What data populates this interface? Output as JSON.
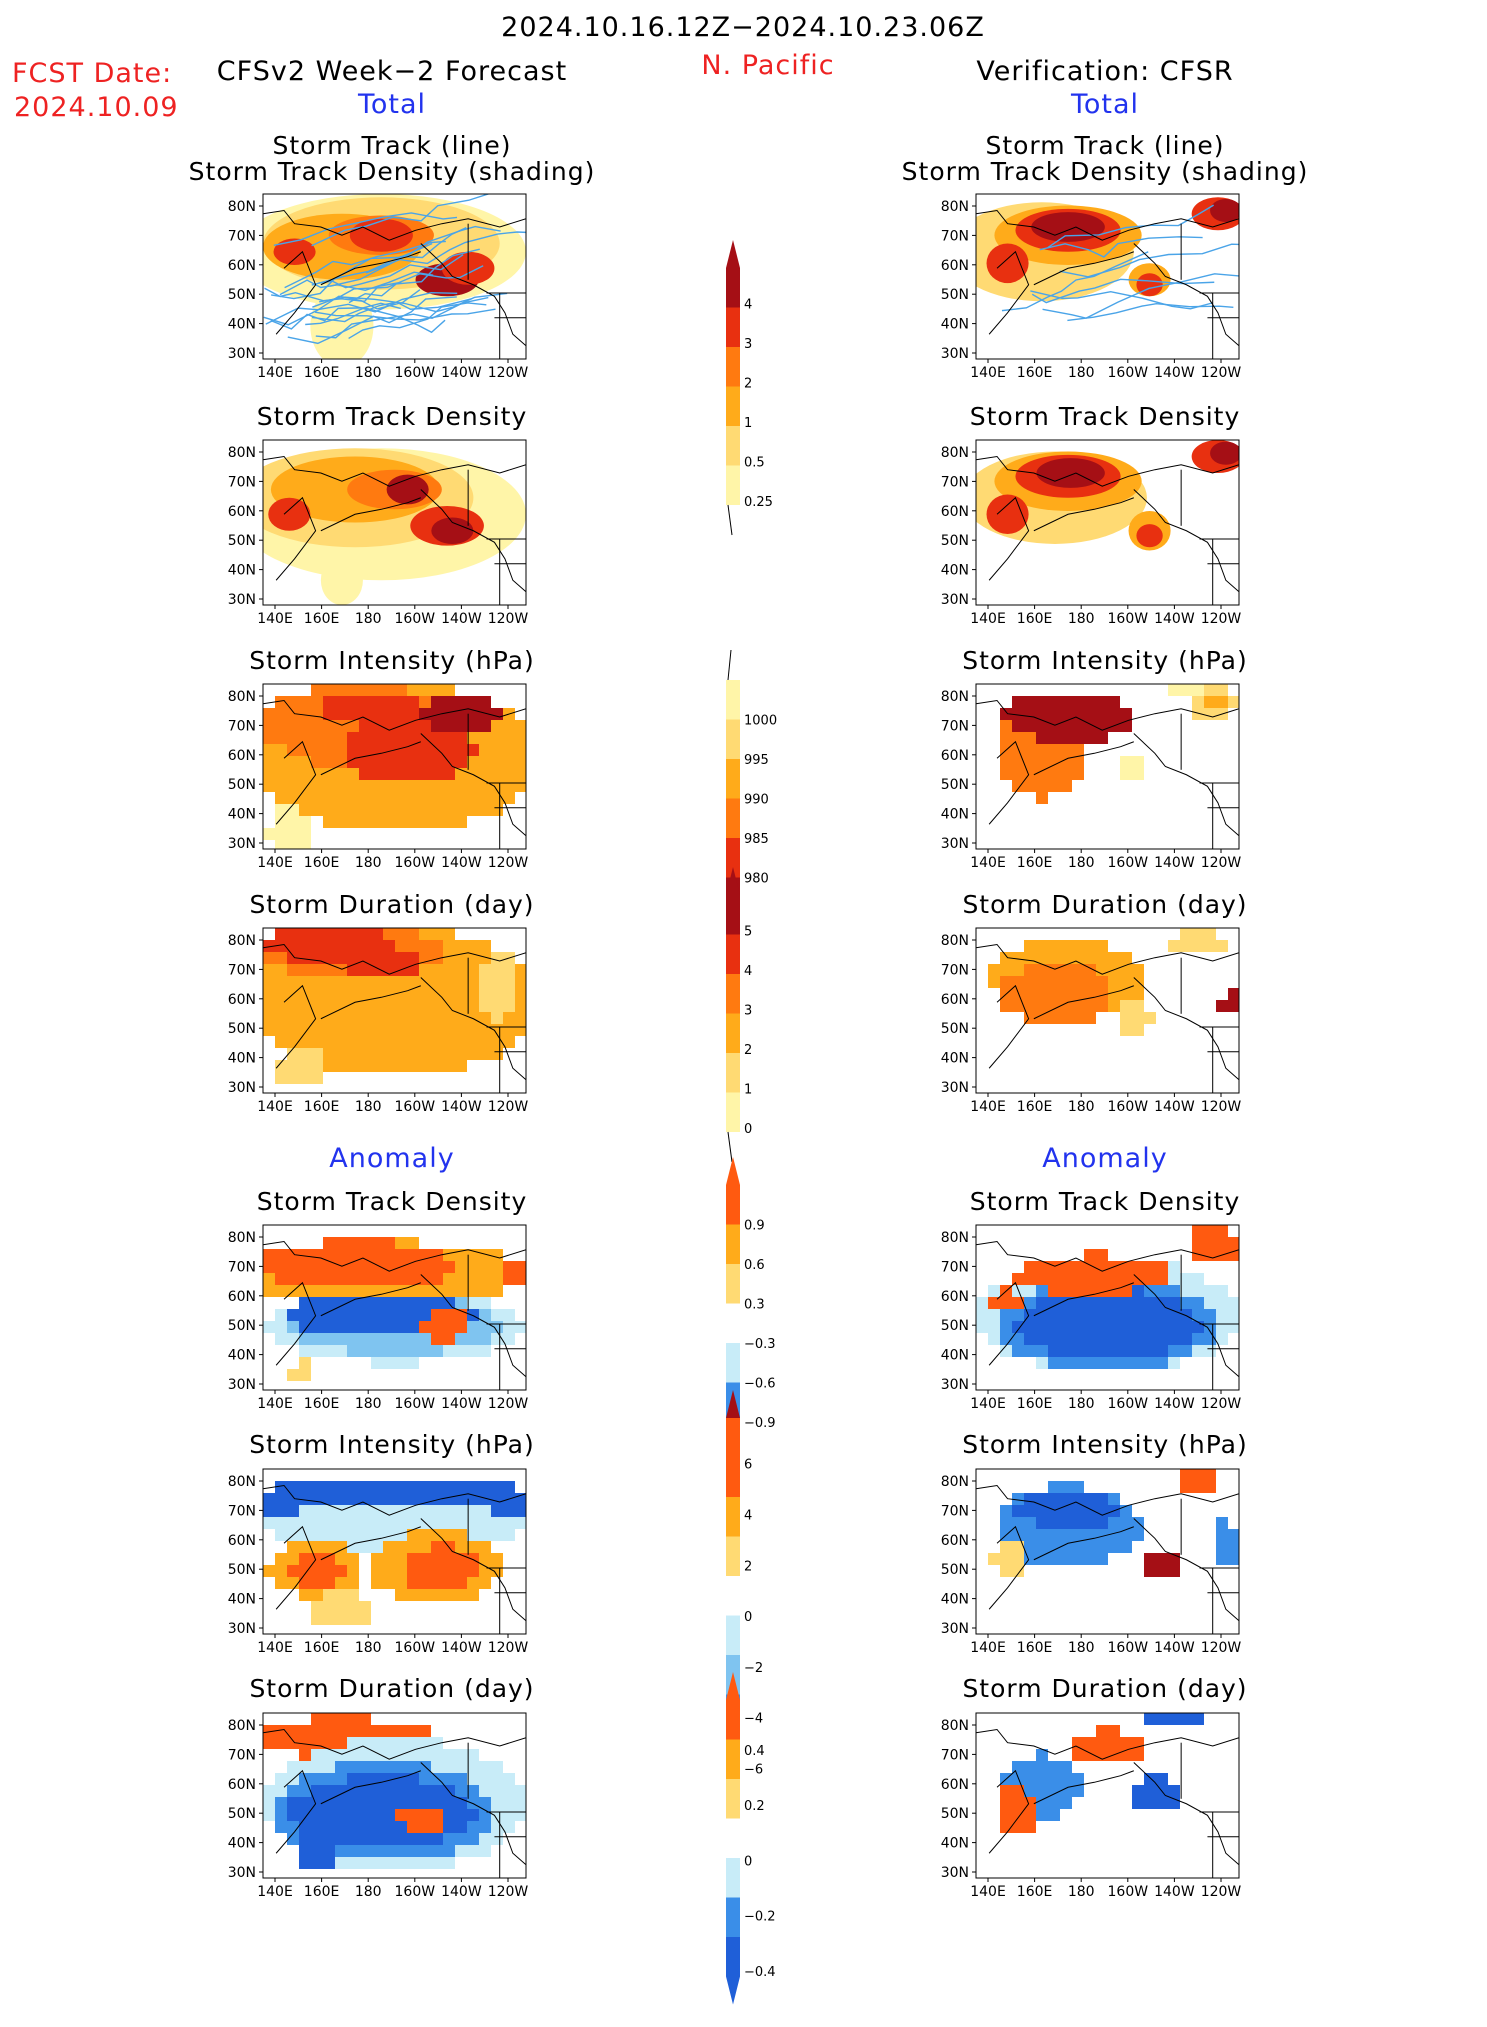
{
  "header": {
    "period": "2024.10.16.12Z−2024.10.23.06Z",
    "fcst_label": "FCST Date:",
    "fcst_date": "2024.10.09",
    "left_title": "CFSv2 Week−2 Forecast",
    "region": "N. Pacific",
    "right_title": "Verification: CFSR"
  },
  "sections": {
    "total": "Total",
    "anomaly": "Anomaly"
  },
  "panel_titles": {
    "track_line": "Storm Track (line)",
    "track_shading": "Storm Track Density (shading)",
    "density": "Storm Track Density",
    "intensity": "Storm Intensity (hPa)",
    "duration": "Storm Duration (day)"
  },
  "axes": {
    "lat": [
      "80N",
      "70N",
      "60N",
      "50N",
      "40N",
      "30N"
    ],
    "lon": [
      "140E",
      "160E",
      "180",
      "160W",
      "140W",
      "120W"
    ]
  },
  "colorbars": [
    {
      "labels": [
        "4",
        "3",
        "2",
        "1",
        "0.5",
        "0.25"
      ]
    },
    {
      "labels": [
        "1000",
        "995",
        "990",
        "985",
        "980"
      ]
    },
    {
      "labels": [
        "5",
        "4",
        "3",
        "2",
        "1",
        "0"
      ]
    },
    {
      "labels": [
        "0.9",
        "0.6",
        "0.3",
        "−0.3",
        "−0.6",
        "−0.9"
      ]
    },
    {
      "labels": [
        "6",
        "4",
        "2",
        "0",
        "−2",
        "−4",
        "−6"
      ]
    },
    {
      "labels": [
        "0.4",
        "0.2",
        "0",
        "−0.2",
        "−0.4"
      ]
    }
  ],
  "colors": {
    "warm": [
      "#fff5a8",
      "#ffda73",
      "#ffab1a",
      "#ff7a10",
      "#e83010",
      "#a50f15"
    ],
    "anom_pos": [
      "#ffda73",
      "#ffab1a",
      "#ff5a10"
    ],
    "anom_neg": [
      "#c8ecf8",
      "#7fc4f0",
      "#3a8ee8",
      "#1f5fd8"
    ],
    "track_line": "#4aa4e8",
    "title_red": "#ee2222",
    "title_blue": "#2233ee"
  }
}
